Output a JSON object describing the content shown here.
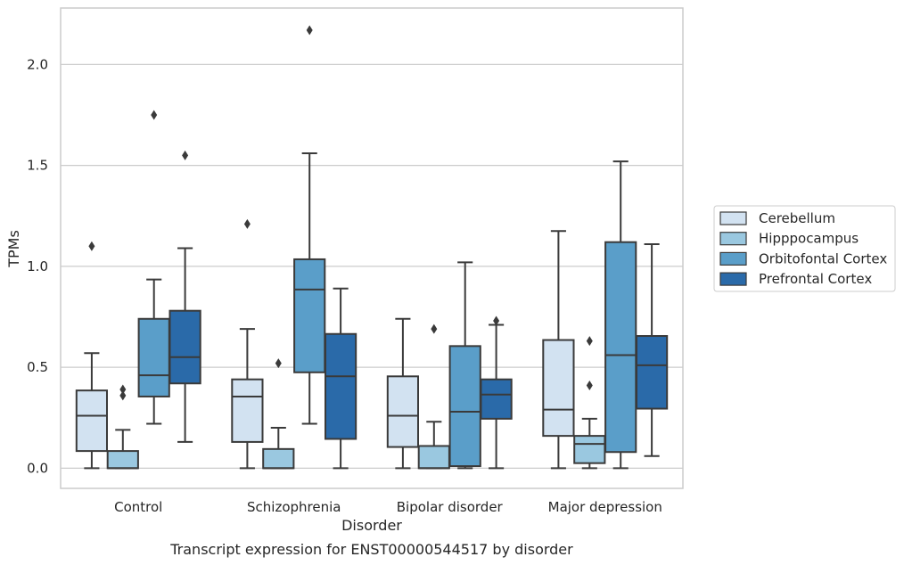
{
  "chart_data": {
    "type": "box",
    "title": "Transcript expression for ENST00000544517 by disorder",
    "xlabel": "Disorder",
    "ylabel": "TPMs",
    "ylim": [
      -0.1,
      2.28
    ],
    "yticks": [
      "0.0",
      "0.5",
      "1.0",
      "1.5",
      "2.0"
    ],
    "grid": "horizontal",
    "legend_placement": "right",
    "categories": [
      "Control",
      "Schizophrenia",
      "Bipolar disorder",
      "Major depression"
    ],
    "series": [
      {
        "name": "Cerebellum",
        "color": "#d2e2f1",
        "boxes": [
          {
            "whislo": 0.0,
            "q1": 0.085,
            "med": 0.26,
            "q3": 0.385,
            "whishi": 0.57,
            "fliers": [
              1.1
            ]
          },
          {
            "whislo": 0.0,
            "q1": 0.13,
            "med": 0.355,
            "q3": 0.44,
            "whishi": 0.69,
            "fliers": [
              1.21
            ]
          },
          {
            "whislo": 0.0,
            "q1": 0.105,
            "med": 0.26,
            "q3": 0.455,
            "whishi": 0.74,
            "fliers": []
          },
          {
            "whislo": 0.0,
            "q1": 0.16,
            "med": 0.29,
            "q3": 0.635,
            "whishi": 1.175,
            "fliers": []
          }
        ]
      },
      {
        "name": "Hipppocampus",
        "color": "#9ac8e0",
        "boxes": [
          {
            "whislo": 0.0,
            "q1": 0.0,
            "med": 0.0,
            "q3": 0.085,
            "whishi": 0.19,
            "fliers": [
              0.36,
              0.39
            ]
          },
          {
            "whislo": 0.0,
            "q1": 0.0,
            "med": 0.0,
            "q3": 0.095,
            "whishi": 0.2,
            "fliers": [
              0.52
            ]
          },
          {
            "whislo": 0.0,
            "q1": 0.0,
            "med": 0.0,
            "q3": 0.11,
            "whishi": 0.23,
            "fliers": [
              0.69
            ]
          },
          {
            "whislo": 0.0,
            "q1": 0.025,
            "med": 0.12,
            "q3": 0.16,
            "whishi": 0.245,
            "fliers": [
              0.41,
              0.63
            ]
          }
        ]
      },
      {
        "name": "Orbitofontal Cortex",
        "color": "#5a9ec9",
        "boxes": [
          {
            "whislo": 0.22,
            "q1": 0.355,
            "med": 0.46,
            "q3": 0.74,
            "whishi": 0.935,
            "fliers": [
              1.75
            ]
          },
          {
            "whislo": 0.22,
            "q1": 0.475,
            "med": 0.885,
            "q3": 1.035,
            "whishi": 1.56,
            "fliers": [
              2.17
            ]
          },
          {
            "whislo": 0.0,
            "q1": 0.01,
            "med": 0.28,
            "q3": 0.605,
            "whishi": 1.02,
            "fliers": []
          },
          {
            "whislo": 0.0,
            "q1": 0.08,
            "med": 0.56,
            "q3": 1.12,
            "whishi": 1.52,
            "fliers": []
          }
        ]
      },
      {
        "name": "Prefrontal Cortex",
        "color": "#2a6aa9",
        "boxes": [
          {
            "whislo": 0.13,
            "q1": 0.42,
            "med": 0.55,
            "q3": 0.78,
            "whishi": 1.09,
            "fliers": [
              1.55
            ]
          },
          {
            "whislo": 0.0,
            "q1": 0.145,
            "med": 0.455,
            "q3": 0.665,
            "whishi": 0.89,
            "fliers": []
          },
          {
            "whislo": 0.0,
            "q1": 0.245,
            "med": 0.365,
            "q3": 0.44,
            "whishi": 0.71,
            "fliers": [
              0.73
            ]
          },
          {
            "whislo": 0.06,
            "q1": 0.295,
            "med": 0.51,
            "q3": 0.655,
            "whishi": 1.11,
            "fliers": []
          }
        ]
      }
    ]
  }
}
